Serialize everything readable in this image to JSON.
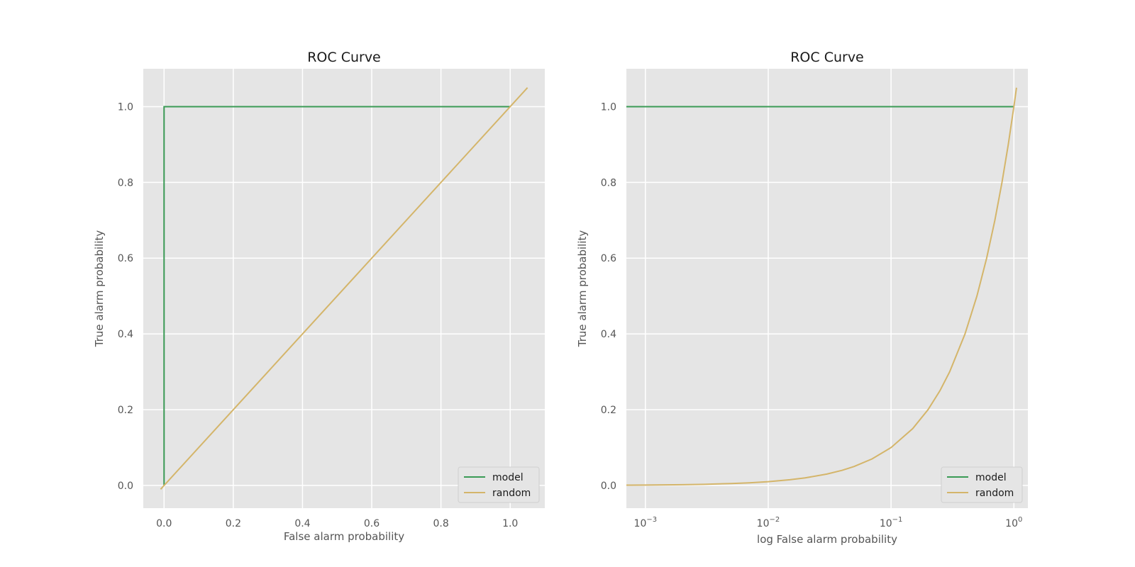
{
  "chart_data": [
    {
      "type": "line",
      "title": "ROC Curve",
      "xlabel": "False alarm probability",
      "ylabel": "True alarm probability",
      "xscale": "linear",
      "xlim": [
        -0.06,
        1.1
      ],
      "ylim": [
        -0.06,
        1.1
      ],
      "xticks": [
        0.0,
        0.2,
        0.4,
        0.6,
        0.8,
        1.0
      ],
      "xtick_labels": [
        "0.0",
        "0.2",
        "0.4",
        "0.6",
        "0.8",
        "1.0"
      ],
      "yticks": [
        0.0,
        0.2,
        0.4,
        0.6,
        0.8,
        1.0
      ],
      "ytick_labels": [
        "0.0",
        "0.2",
        "0.4",
        "0.6",
        "0.8",
        "1.0"
      ],
      "grid": true,
      "legend_position": "lower-right",
      "series": [
        {
          "name": "model",
          "color": "#3a9a55",
          "x": [
            0.0,
            0.0,
            1.0
          ],
          "y": [
            0.0,
            1.0,
            1.0
          ]
        },
        {
          "name": "random",
          "color": "#d4b56a",
          "x": [
            -0.01,
            1.05
          ],
          "y": [
            -0.01,
            1.05
          ]
        }
      ]
    },
    {
      "type": "line",
      "title": "ROC Curve",
      "xlabel": "log False alarm probability",
      "ylabel": "True alarm probability",
      "xscale": "log",
      "xlim": [
        0.0007,
        1.3
      ],
      "ylim": [
        -0.06,
        1.1
      ],
      "xticks": [
        0.001,
        0.01,
        0.1,
        1
      ],
      "xtick_labels": [
        {
          "base": "10",
          "exp": "−3"
        },
        {
          "base": "10",
          "exp": "−2"
        },
        {
          "base": "10",
          "exp": "−1"
        },
        {
          "base": "10",
          "exp": "0"
        }
      ],
      "yticks": [
        0.0,
        0.2,
        0.4,
        0.6,
        0.8,
        1.0
      ],
      "ytick_labels": [
        "0.0",
        "0.2",
        "0.4",
        "0.6",
        "0.8",
        "1.0"
      ],
      "grid": true,
      "legend_position": "lower-right",
      "series": [
        {
          "name": "model",
          "color": "#3a9a55",
          "x": [
            0.0007,
            1.0
          ],
          "y": [
            1.0,
            1.0
          ]
        },
        {
          "name": "random",
          "color": "#d4b56a",
          "x": [
            0.0007,
            0.001,
            0.002,
            0.003,
            0.005,
            0.007,
            0.01,
            0.015,
            0.02,
            0.03,
            0.04,
            0.05,
            0.07,
            0.1,
            0.15,
            0.2,
            0.25,
            0.3,
            0.4,
            0.5,
            0.6,
            0.7,
            0.8,
            0.9,
            1.0,
            1.05
          ],
          "y": [
            0.0007,
            0.001,
            0.002,
            0.003,
            0.005,
            0.007,
            0.01,
            0.015,
            0.02,
            0.03,
            0.04,
            0.05,
            0.07,
            0.1,
            0.15,
            0.2,
            0.25,
            0.3,
            0.4,
            0.5,
            0.6,
            0.7,
            0.8,
            0.9,
            1.0,
            1.05
          ]
        }
      ]
    }
  ]
}
